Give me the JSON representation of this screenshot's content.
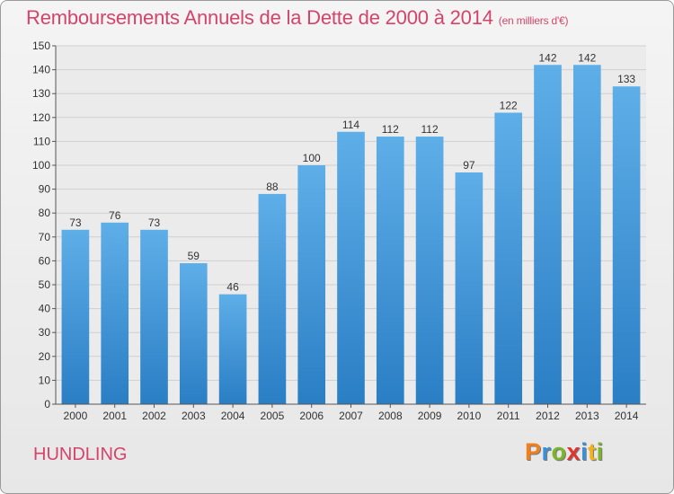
{
  "header": {
    "title": "Remboursements Annuels de la Dette de 2000 à 2014",
    "subtitle": "(en milliers d'€)"
  },
  "footer": {
    "location": "HUNDLING",
    "logo_text": "Proxiti",
    "logo_colors": [
      "#f07f1e",
      "#3b8fd6",
      "#7cb52a",
      "#e0352f",
      "#3b8fd6",
      "#f2b21c",
      "#7cb52a"
    ]
  },
  "colors": {
    "bar_light": "#5eaee8",
    "bar_dark": "#2a7ec4",
    "title": "#d4446a"
  },
  "chart_data": {
    "type": "bar",
    "title": "Remboursements Annuels de la Dette de 2000 à 2014",
    "subtitle": "(en milliers d'€)",
    "xlabel": "",
    "ylabel": "",
    "categories": [
      "2000",
      "2001",
      "2002",
      "2003",
      "2004",
      "2005",
      "2006",
      "2007",
      "2008",
      "2009",
      "2010",
      "2011",
      "2012",
      "2013",
      "2014"
    ],
    "values": [
      73,
      76,
      73,
      59,
      46,
      88,
      100,
      114,
      112,
      112,
      97,
      122,
      142,
      142,
      133
    ],
    "ylim": [
      0,
      150
    ],
    "yticks": [
      0,
      10,
      20,
      30,
      40,
      50,
      60,
      70,
      80,
      90,
      100,
      110,
      120,
      130,
      140,
      150
    ],
    "grid": true,
    "legend": "none"
  }
}
